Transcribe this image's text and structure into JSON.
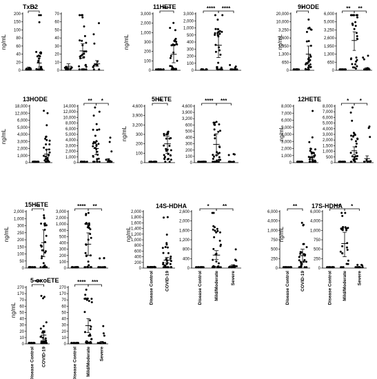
{
  "y_axis_label": "ng/mL",
  "group_labels": {
    "dc": "Disease Control",
    "cov": "COVID-19",
    "mild": "Mild/Moderate",
    "sev": "Severe"
  },
  "chart_data": [
    {
      "title": "TxB2",
      "type": "scatter",
      "panels": [
        {
          "y_ticks": [
            "0",
            "20",
            "40",
            "60",
            "80",
            "100",
            "150",
            "200"
          ],
          "groups": [
            {
              "name": "Disease Control",
              "mean": 5,
              "ci": [
                3,
                8
              ]
            },
            {
              "name": "COVID-19",
              "mean": 18,
              "ci": [
                8,
                30
              ]
            }
          ],
          "significance": [
            {
              "from": 0,
              "to": 1,
              "label": "*"
            }
          ]
        },
        {
          "y_ticks": [
            "0",
            "10",
            "20",
            "30",
            "40",
            "50",
            "60",
            "70"
          ],
          "groups": [
            {
              "name": "Disease Control",
              "mean": 5,
              "ci": [
                3,
                8
              ]
            },
            {
              "name": "Mild/Moderate",
              "mean": 24,
              "ci": [
                15,
                33
              ]
            },
            {
              "name": "Severe",
              "mean": 8,
              "ci": [
                5,
                12
              ]
            }
          ],
          "significance": []
        }
      ]
    },
    {
      "title": "11HETE",
      "type": "scatter",
      "panels": [
        {
          "y_ticks": [
            "0",
            "100",
            "200",
            "300",
            "1,000",
            "2,000",
            "3,000"
          ],
          "groups": [
            {
              "name": "Disease Control",
              "mean": 2,
              "ci": [
                1,
                4
              ]
            },
            {
              "name": "COVID-19",
              "mean": 170,
              "ci": [
                80,
                260
              ]
            }
          ],
          "significance": [
            {
              "from": 0,
              "to": 1,
              "label": "****"
            }
          ]
        },
        {
          "y_ticks": [
            "0",
            "100",
            "200",
            "300",
            "400",
            "500",
            "1,000",
            "2,000",
            "3,000"
          ],
          "groups": [
            {
              "name": "Disease Control",
              "mean": 2,
              "ci": [
                1,
                4
              ]
            },
            {
              "name": "Mild/Moderate",
              "mean": 355,
              "ci": [
                180,
                520
              ]
            },
            {
              "name": "Severe",
              "mean": 5,
              "ci": [
                2,
                10
              ]
            }
          ],
          "significance": [
            {
              "from": 0,
              "to": 1,
              "label": "****"
            },
            {
              "from": 1,
              "to": 2,
              "label": "****"
            }
          ]
        }
      ]
    },
    {
      "title": "9HODE",
      "type": "scatter",
      "panels": [
        {
          "y_ticks": [
            "0",
            "650",
            "1,300",
            "1,950",
            "2,600",
            "3,250",
            "10,000",
            "20,000"
          ],
          "groups": [
            {
              "name": "Disease Control",
              "mean": 40,
              "ci": [
                20,
                60
              ]
            },
            {
              "name": "COVID-19",
              "mean": 1300,
              "ci": [
                650,
                1950
              ]
            }
          ],
          "significance": [
            {
              "from": 0,
              "to": 1,
              "label": "*"
            }
          ]
        },
        {
          "y_ticks": [
            "0",
            "650",
            "1,300",
            "1,950",
            "2,600",
            "3,250",
            "5,000",
            "6,000"
          ],
          "groups": [
            {
              "name": "Disease Control",
              "mean": 40,
              "ci": [
                20,
                60
              ]
            },
            {
              "name": "Mild/Moderate",
              "mean": 2400,
              "ci": [
                1600,
                3100
              ]
            },
            {
              "name": "Severe",
              "mean": 120,
              "ci": [
                60,
                200
              ]
            }
          ],
          "significance": [
            {
              "from": 0,
              "to": 1,
              "label": "**"
            },
            {
              "from": 1,
              "to": 2,
              "label": "**"
            }
          ]
        }
      ]
    },
    {
      "title": "13HODE",
      "type": "scatter",
      "panels": [
        {
          "y_ticks": [
            "0",
            "1,000",
            "2,000",
            "3,000",
            "4,000",
            "5,000",
            "6,000",
            "12,000",
            "18,000"
          ],
          "groups": [
            {
              "name": "Disease Control",
              "mean": 30,
              "ci": [
                10,
                60
              ]
            },
            {
              "name": "COVID-19",
              "mean": 1200,
              "ci": [
                500,
                1900
              ]
            }
          ],
          "significance": []
        },
        {
          "y_ticks": [
            "0",
            "1,000",
            "2,000",
            "3,000",
            "4,000",
            "5,000",
            "6,000",
            "8,000",
            "10,000",
            "12,000",
            "14,000"
          ],
          "groups": [
            {
              "name": "Disease Control",
              "mean": 30,
              "ci": [
                10,
                60
              ]
            },
            {
              "name": "Mild/Moderate",
              "mean": 2500,
              "ci": [
                1400,
                3700
              ]
            },
            {
              "name": "Severe",
              "mean": 400,
              "ci": [
                100,
                700
              ]
            }
          ],
          "significance": [
            {
              "from": 0,
              "to": 1,
              "label": "**"
            },
            {
              "from": 1,
              "to": 2,
              "label": "*"
            }
          ]
        }
      ]
    },
    {
      "title": "5HETE",
      "type": "scatter",
      "panels": [
        {
          "y_ticks": [
            "0",
            "100",
            "200",
            "300",
            "3,200",
            "3,900",
            "4,600"
          ],
          "groups": [
            {
              "name": "Disease Control",
              "mean": 5,
              "ci": [
                2,
                10
              ]
            },
            {
              "name": "COVID-19",
              "mean": 200,
              "ci": [
                100,
                280
              ]
            }
          ],
          "significance": [
            {
              "from": 0,
              "to": 1,
              "label": "**"
            }
          ]
        },
        {
          "y_ticks": [
            "0",
            "100",
            "200",
            "300",
            "400",
            "500",
            "600",
            "3,200",
            "3,900",
            "4,600"
          ],
          "groups": [
            {
              "name": "Disease Control",
              "mean": 5,
              "ci": [
                2,
                10
              ]
            },
            {
              "name": "Mild/Moderate",
              "mean": 290,
              "ci": [
                120,
                460
              ]
            },
            {
              "name": "Severe",
              "mean": 10,
              "ci": [
                3,
                20
              ]
            }
          ],
          "significance": [
            {
              "from": 0,
              "to": 1,
              "label": "****"
            },
            {
              "from": 1,
              "to": 2,
              "label": "***"
            }
          ]
        }
      ]
    },
    {
      "title": "12HETE",
      "type": "scatter",
      "panels": [
        {
          "y_ticks": [
            "0",
            "1,000",
            "2,000",
            "3,000",
            "4,000",
            "5,000",
            "6,000",
            "7,000",
            "8,000"
          ],
          "groups": [
            {
              "name": "Disease Control",
              "mean": 50,
              "ci": [
                20,
                90
              ]
            },
            {
              "name": "COVID-19",
              "mean": 700,
              "ci": [
                450,
                950
              ]
            }
          ],
          "significance": []
        },
        {
          "y_ticks": [
            "0",
            "500",
            "1,000",
            "1,500",
            "2,000",
            "3,000",
            "4,000",
            "5,000",
            "6,000",
            "7,000",
            "8,000"
          ],
          "groups": [
            {
              "name": "Disease Control",
              "mean": 50,
              "ci": [
                20,
                90
              ]
            },
            {
              "name": "Mild/Moderate",
              "mean": 1050,
              "ci": [
                700,
                1400
              ]
            },
            {
              "name": "Severe",
              "mean": 350,
              "ci": [
                120,
                600
              ]
            }
          ],
          "significance": [
            {
              "from": 0,
              "to": 1,
              "label": "*"
            },
            {
              "from": 1,
              "to": 2,
              "label": "*"
            }
          ]
        }
      ]
    },
    {
      "title": "15HETE",
      "type": "scatter",
      "panels": [
        {
          "y_ticks": [
            "0",
            "50",
            "100",
            "150",
            "200",
            "250",
            "300",
            "1,000",
            "2,000"
          ],
          "groups": [
            {
              "name": "Disease Control",
              "mean": 5,
              "ci": [
                2,
                10
              ]
            },
            {
              "name": "COVID-19",
              "mean": 180,
              "ci": [
                80,
                270
              ]
            }
          ],
          "significance": [
            {
              "from": 0,
              "to": 1,
              "label": "**"
            }
          ]
        },
        {
          "y_ticks": [
            "0",
            "100",
            "200",
            "300",
            "400",
            "500",
            "600",
            "1,000",
            "2,000",
            "3,000"
          ],
          "groups": [
            {
              "name": "Disease Control",
              "mean": 5,
              "ci": [
                2,
                10
              ]
            },
            {
              "name": "Mild/Moderate",
              "mean": 380,
              "ci": [
                200,
                560
              ]
            },
            {
              "name": "Severe",
              "mean": 10,
              "ci": [
                3,
                20
              ]
            }
          ],
          "significance": [
            {
              "from": 0,
              "to": 1,
              "label": "****"
            },
            {
              "from": 1,
              "to": 2,
              "label": "**"
            }
          ]
        }
      ]
    },
    {
      "title": "14S-HDHA",
      "type": "scatter",
      "panels": [
        {
          "y_ticks": [
            "0",
            "200",
            "400",
            "600",
            "800",
            "1,000",
            "1,200",
            "1,400",
            "1,600",
            "1,800",
            "2,000"
          ],
          "groups": [
            {
              "name": "Disease Control",
              "mean": 40,
              "ci": [
                20,
                60
              ]
            },
            {
              "name": "COVID-19",
              "mean": 280,
              "ci": [
                180,
                380
              ]
            }
          ],
          "significance": []
        },
        {
          "y_ticks": [
            "0",
            "400",
            "800",
            "1,200",
            "1,600",
            "2,000",
            "2,600"
          ],
          "groups": [
            {
              "name": "Disease Control",
              "mean": 40,
              "ci": [
                20,
                60
              ]
            },
            {
              "name": "Mild/Moderate",
              "mean": 550,
              "ci": [
                360,
                740
              ]
            },
            {
              "name": "Severe",
              "mean": 90,
              "ci": [
                40,
                140
              ]
            }
          ],
          "significance": [
            {
              "from": 0,
              "to": 1,
              "label": "*"
            },
            {
              "from": 1,
              "to": 2,
              "label": "**"
            }
          ]
        }
      ]
    },
    {
      "title": "17S-HDHA",
      "type": "scatter",
      "panels": [
        {
          "y_ticks": [
            "0",
            "250",
            "500",
            "750",
            "1,000",
            "4,000",
            "6,000"
          ],
          "groups": [
            {
              "name": "Disease Control",
              "mean": 10,
              "ci": [
                5,
                20
              ]
            },
            {
              "name": "COVID-19",
              "mean": 330,
              "ci": [
                150,
                500
              ]
            }
          ],
          "significance": [
            {
              "from": 0,
              "to": 1,
              "label": "**"
            }
          ]
        },
        {
          "y_ticks": [
            "0",
            "250",
            "500",
            "750",
            "1,000",
            "4,000",
            "6,000"
          ],
          "groups": [
            {
              "name": "Disease Control",
              "mean": 10,
              "ci": [
                5,
                20
              ]
            },
            {
              "name": "Mild/Moderate",
              "mean": 650,
              "ci": [
                300,
                950
              ]
            },
            {
              "name": "Severe",
              "mean": 15,
              "ci": [
                5,
                25
              ]
            }
          ],
          "significance": [
            {
              "from": 0,
              "to": 1,
              "label": "***"
            },
            {
              "from": 1,
              "to": 2,
              "label": "*"
            }
          ]
        }
      ]
    },
    {
      "title": "5-oxoETE",
      "type": "scatter",
      "panels": [
        {
          "y_ticks": [
            "0",
            "10",
            "20",
            "30",
            "40",
            "50",
            "60",
            "70",
            "170",
            "270"
          ],
          "groups": [
            {
              "name": "Disease Control",
              "mean": 1,
              "ci": [
                0,
                2
              ]
            },
            {
              "name": "COVID-19",
              "mean": 14,
              "ci": [
                7,
                21
              ]
            }
          ],
          "significance": [
            {
              "from": 0,
              "to": 1,
              "label": "***"
            }
          ]
        },
        {
          "y_ticks": [
            "0",
            "10",
            "20",
            "30",
            "40",
            "50",
            "60",
            "70",
            "170",
            "270"
          ],
          "groups": [
            {
              "name": "Disease Control",
              "mean": 1,
              "ci": [
                0,
                2
              ]
            },
            {
              "name": "Mild/Moderate",
              "mean": 29,
              "ci": [
                18,
                40
              ]
            },
            {
              "name": "Severe",
              "mean": 2,
              "ci": [
                0,
                4
              ]
            }
          ],
          "significance": [
            {
              "from": 0,
              "to": 1,
              "label": "****"
            },
            {
              "from": 1,
              "to": 2,
              "label": "***"
            }
          ]
        }
      ]
    }
  ]
}
